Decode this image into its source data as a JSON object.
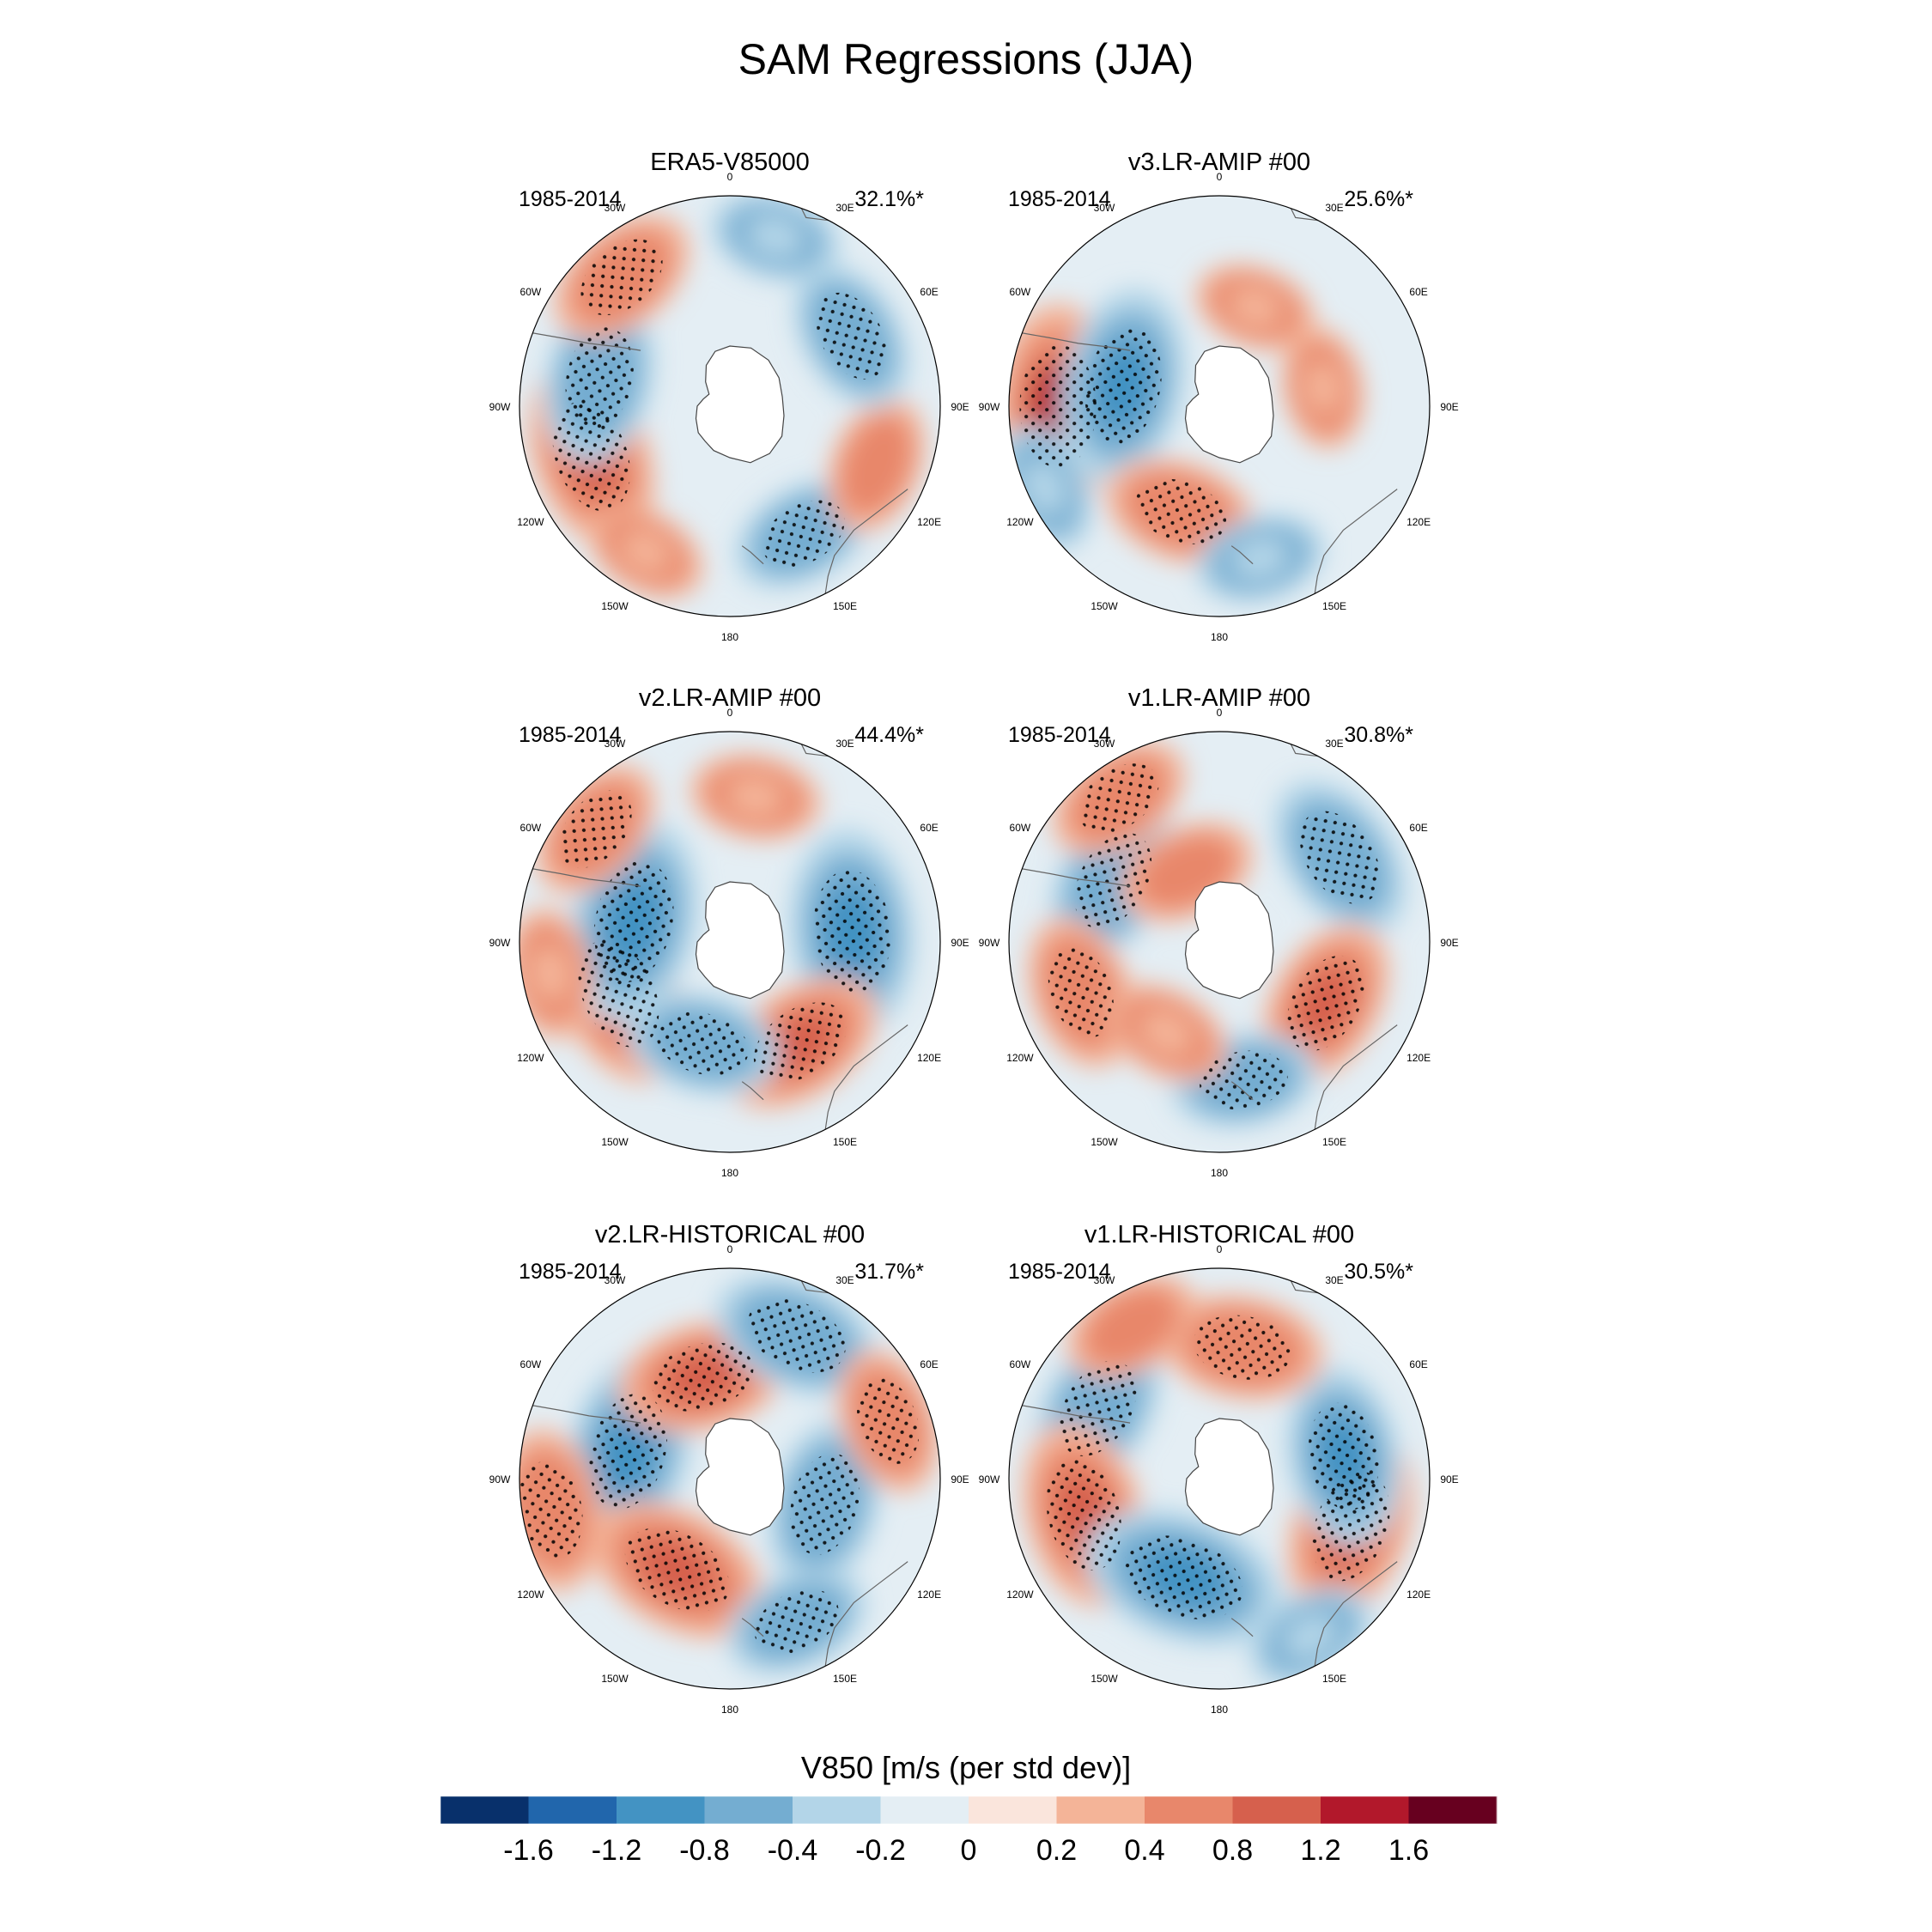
{
  "chart_data": {
    "type": "heatmap",
    "title": "SAM Regressions (JJA)",
    "projection": "south polar stereographic",
    "period": "1985-2014",
    "longitude_labels": [
      "0",
      "30E",
      "60E",
      "90E",
      "120E",
      "150E",
      "180",
      "150W",
      "120W",
      "90W",
      "60W",
      "30W"
    ],
    "colorbar": {
      "label": "V850 [m/s (per std dev)]",
      "tick_labels": [
        "-1.6",
        "-1.2",
        "-0.8",
        "-0.4",
        "-0.2",
        "0",
        "0.2",
        "0.4",
        "0.8",
        "1.2",
        "1.6"
      ],
      "colors": [
        "#08306b",
        "#2166ac",
        "#4393c3",
        "#74add1",
        "#b3d5e8",
        "#e4eef4",
        "#fae5dc",
        "#f4b498",
        "#e8876b",
        "#d6604d",
        "#b2182b",
        "#67001f"
      ]
    },
    "panels": [
      {
        "title": "ERA5-V85000",
        "period": "1985-2014",
        "explained": "32.1%*",
        "anomalies": [
          {
            "lon": -110,
            "colat": 42,
            "value": 1.0
          },
          {
            "lon": -78,
            "colat": 38,
            "value": -0.8
          },
          {
            "lon": -40,
            "colat": 48,
            "value": 0.6
          },
          {
            "lon": -150,
            "colat": 48,
            "value": 0.2
          },
          {
            "lon": 150,
            "colat": 42,
            "value": -0.5
          },
          {
            "lon": 112,
            "colat": 45,
            "value": 0.4
          },
          {
            "lon": 60,
            "colat": 40,
            "value": -0.6
          },
          {
            "lon": 15,
            "colat": 50,
            "value": -0.3
          }
        ]
      },
      {
        "title": "v3.LR-AMIP  #00",
        "period": "1985-2014",
        "explained": "25.6%*",
        "anomalies": [
          {
            "lon": -90,
            "colat": 46,
            "value": 1.2
          },
          {
            "lon": -78,
            "colat": 28,
            "value": -1.1
          },
          {
            "lon": -160,
            "colat": 32,
            "value": 0.6
          },
          {
            "lon": 165,
            "colat": 45,
            "value": -0.3
          },
          {
            "lon": -115,
            "colat": 55,
            "value": -0.3
          },
          {
            "lon": 80,
            "colat": 30,
            "value": 0.2
          },
          {
            "lon": 20,
            "colat": 30,
            "value": 0.2
          }
        ]
      },
      {
        "title": "v2.LR-AMIP  #00",
        "period": "1985-2014",
        "explained": "44.4%*",
        "anomalies": [
          {
            "lon": -115,
            "colat": 35,
            "value": 1.0
          },
          {
            "lon": -78,
            "colat": 28,
            "value": -1.2
          },
          {
            "lon": 85,
            "colat": 35,
            "value": -1.2
          },
          {
            "lon": 145,
            "colat": 35,
            "value": 0.8
          },
          {
            "lon": -165,
            "colat": 30,
            "value": -0.6
          },
          {
            "lon": -50,
            "colat": 50,
            "value": 0.5
          },
          {
            "lon": 10,
            "colat": 42,
            "value": 0.3
          },
          {
            "lon": -100,
            "colat": 52,
            "value": 0.3
          }
        ]
      },
      {
        "title": "v1.LR-AMIP  #00",
        "period": "1985-2014",
        "explained": "30.8%*",
        "anomalies": [
          {
            "lon": -60,
            "colat": 35,
            "value": -0.8
          },
          {
            "lon": -110,
            "colat": 42,
            "value": 0.6
          },
          {
            "lon": 55,
            "colat": 42,
            "value": -0.8
          },
          {
            "lon": 120,
            "colat": 35,
            "value": 0.8
          },
          {
            "lon": 170,
            "colat": 40,
            "value": -0.5
          },
          {
            "lon": -150,
            "colat": 30,
            "value": 0.3
          },
          {
            "lon": -35,
            "colat": 50,
            "value": 0.5
          },
          {
            "lon": -25,
            "colat": 22,
            "value": 0.4
          }
        ]
      },
      {
        "title": "v2.LR-HISTORICAL  #00",
        "period": "1985-2014",
        "explained": "31.7%*",
        "anomalies": [
          {
            "lon": -75,
            "colat": 30,
            "value": -1.1
          },
          {
            "lon": -150,
            "colat": 30,
            "value": 1.0
          },
          {
            "lon": -100,
            "colat": 52,
            "value": 0.7
          },
          {
            "lon": 105,
            "colat": 28,
            "value": -0.8
          },
          {
            "lon": -15,
            "colat": 30,
            "value": 0.8
          },
          {
            "lon": 25,
            "colat": 45,
            "value": -0.8
          },
          {
            "lon": 70,
            "colat": 48,
            "value": 0.5
          },
          {
            "lon": 155,
            "colat": 45,
            "value": -0.5
          }
        ]
      },
      {
        "title": "v1.LR-HISTORICAL  #00",
        "period": "1985-2014",
        "explained": "30.5%*",
        "anomalies": [
          {
            "lon": -60,
            "colat": 40,
            "value": -0.8
          },
          {
            "lon": -105,
            "colat": 40,
            "value": 1.0
          },
          {
            "lon": 110,
            "colat": 40,
            "value": 1.0
          },
          {
            "lon": 80,
            "colat": 36,
            "value": -0.9
          },
          {
            "lon": 10,
            "colat": 38,
            "value": 0.7
          },
          {
            "lon": -160,
            "colat": 30,
            "value": -1.2
          },
          {
            "lon": -30,
            "colat": 50,
            "value": 0.4
          },
          {
            "lon": 150,
            "colat": 52,
            "value": -0.3
          }
        ]
      }
    ]
  }
}
